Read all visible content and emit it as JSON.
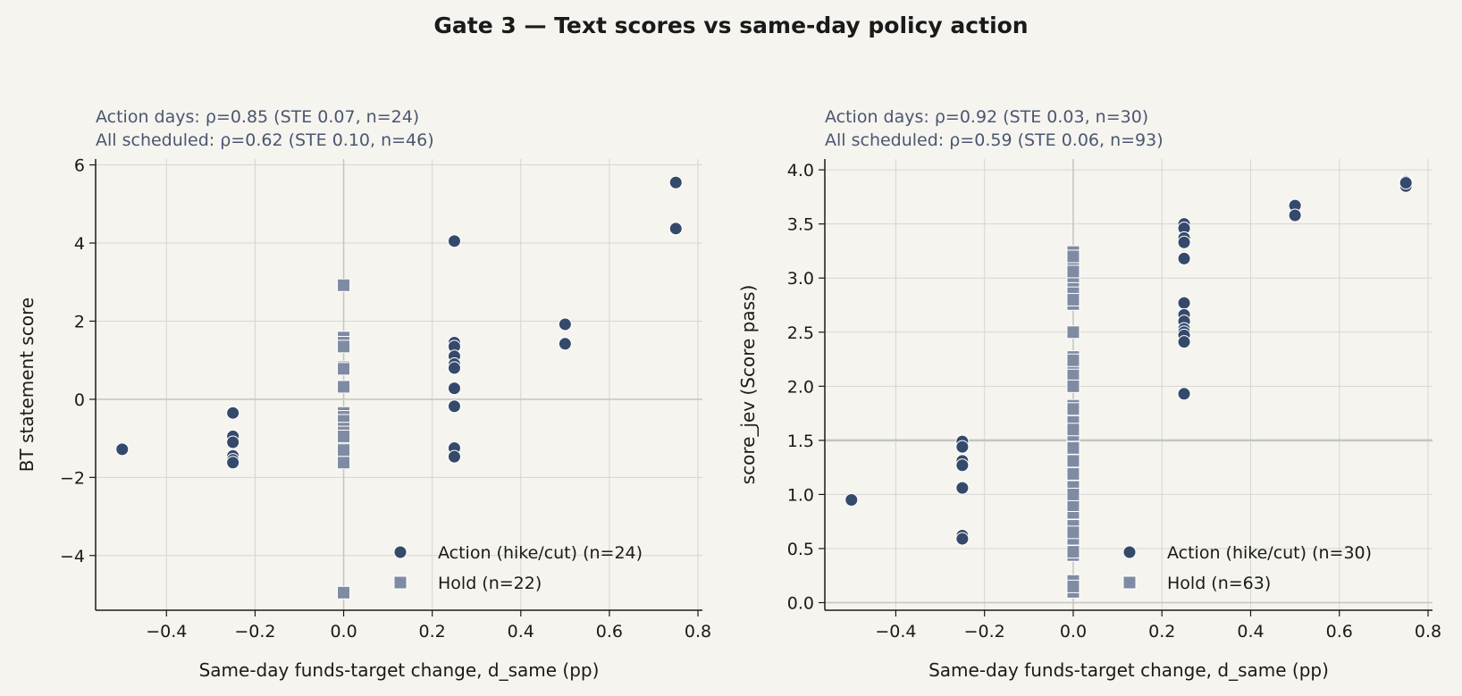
{
  "title": "Gate 3 — Text scores vs same-day policy action",
  "colors": {
    "background": "#f5f4ef",
    "action": "#35496b",
    "hold": "#7f8ba2",
    "grid": "#d6d6d2",
    "subtitle": "#4b5670"
  },
  "chart_data": [
    {
      "type": "scatter",
      "subtitle_lines": [
        "Action days: ρ=0.85 (STE 0.07, n=24)",
        "All scheduled: ρ=0.62 (STE 0.10, n=46)"
      ],
      "xlabel": "Same-day funds-target change, d_same (pp)",
      "ylabel": "BT statement score",
      "xlim": [
        -0.56,
        0.81
      ],
      "ylim": [
        -5.4,
        6.15
      ],
      "xticks": [
        -0.4,
        -0.2,
        0.0,
        0.2,
        0.4,
        0.6,
        0.8
      ],
      "xtick_labels": [
        "−0.4",
        "−0.2",
        "0.0",
        "0.2",
        "0.4",
        "0.6",
        "0.8"
      ],
      "yticks": [
        -4,
        -2,
        0,
        2,
        4,
        6
      ],
      "ytick_labels": [
        "−4",
        "−2",
        "0",
        "2",
        "4",
        "6"
      ],
      "grid": true,
      "legend_position": "lower-right",
      "series": [
        {
          "name": "Action (hike/cut) (n=24)",
          "marker": "circle",
          "points": [
            [
              -0.5,
              -1.28
            ],
            [
              -0.25,
              -0.35
            ],
            [
              -0.25,
              -0.95
            ],
            [
              -0.25,
              -1.1
            ],
            [
              -0.25,
              -1.45
            ],
            [
              -0.25,
              -1.55
            ],
            [
              -0.25,
              -1.62
            ],
            [
              0.25,
              4.05
            ],
            [
              0.25,
              1.45
            ],
            [
              0.25,
              1.35
            ],
            [
              0.25,
              1.1
            ],
            [
              0.25,
              0.9
            ],
            [
              0.25,
              0.8
            ],
            [
              0.25,
              0.28
            ],
            [
              0.25,
              -0.18
            ],
            [
              0.25,
              -1.25
            ],
            [
              0.25,
              -1.47
            ],
            [
              0.5,
              1.92
            ],
            [
              0.5,
              1.42
            ],
            [
              0.75,
              5.55
            ],
            [
              0.75,
              4.38
            ],
            [
              0.75,
              4.35
            ],
            [
              0.75,
              4.36
            ],
            [
              0.75,
              4.37
            ]
          ]
        },
        {
          "name": "Hold (n=22)",
          "marker": "square",
          "points": [
            [
              0,
              2.92
            ],
            [
              0,
              1.58
            ],
            [
              0,
              1.45
            ],
            [
              0,
              1.35
            ],
            [
              0,
              0.82
            ],
            [
              0,
              0.78
            ],
            [
              0,
              0.32
            ],
            [
              0,
              -0.35
            ],
            [
              0,
              -0.45
            ],
            [
              0,
              -0.55
            ],
            [
              0,
              -0.75
            ],
            [
              0,
              -0.85
            ],
            [
              0,
              -1.0
            ],
            [
              0,
              -1.08
            ],
            [
              0,
              -1.2
            ],
            [
              0,
              -1.35
            ],
            [
              0,
              -1.45
            ],
            [
              0,
              -1.55
            ],
            [
              0,
              -1.62
            ],
            [
              0,
              -1.3
            ],
            [
              0,
              -0.95
            ],
            [
              0,
              -4.95
            ]
          ]
        }
      ]
    },
    {
      "type": "scatter",
      "subtitle_lines": [
        "Action days: ρ=0.92 (STE 0.03, n=30)",
        "All scheduled: ρ=0.59 (STE 0.06, n=93)"
      ],
      "xlabel": "Same-day funds-target change, d_same (pp)",
      "ylabel": "score_jev (Score pass)",
      "xlim": [
        -0.56,
        0.81
      ],
      "ylim": [
        -0.07,
        4.1
      ],
      "xticks": [
        -0.4,
        -0.2,
        0.0,
        0.2,
        0.4,
        0.6,
        0.8
      ],
      "xtick_labels": [
        "−0.4",
        "−0.2",
        "0.0",
        "0.2",
        "0.4",
        "0.6",
        "0.8"
      ],
      "yticks": [
        0.0,
        0.5,
        1.0,
        1.5,
        2.0,
        2.5,
        3.0,
        3.5,
        4.0
      ],
      "ytick_labels": [
        "0.0",
        "0.5",
        "1.0",
        "1.5",
        "2.0",
        "2.5",
        "3.0",
        "3.5",
        "4.0"
      ],
      "reference_line_y": 1.5,
      "grid": true,
      "legend_position": "lower-right",
      "series": [
        {
          "name": "Action (hike/cut) (n=30)",
          "marker": "circle",
          "points": [
            [
              -0.5,
              0.95
            ],
            [
              -0.25,
              1.49
            ],
            [
              -0.25,
              1.44
            ],
            [
              -0.25,
              1.31
            ],
            [
              -0.25,
              1.27
            ],
            [
              -0.25,
              1.06
            ],
            [
              -0.25,
              0.62
            ],
            [
              -0.25,
              0.59
            ],
            [
              0.25,
              3.5
            ],
            [
              0.25,
              3.46
            ],
            [
              0.25,
              3.37
            ],
            [
              0.25,
              3.33
            ],
            [
              0.25,
              3.18
            ],
            [
              0.25,
              2.77
            ],
            [
              0.25,
              2.66
            ],
            [
              0.25,
              2.6
            ],
            [
              0.25,
              2.53
            ],
            [
              0.25,
              2.5
            ],
            [
              0.25,
              2.47
            ],
            [
              0.25,
              2.41
            ],
            [
              0.25,
              1.93
            ],
            [
              0.5,
              3.67
            ],
            [
              0.5,
              3.58
            ],
            [
              0.75,
              3.9
            ],
            [
              0.75,
              3.88
            ],
            [
              0.75,
              3.86
            ],
            [
              0.75,
              3.87
            ],
            [
              0.75,
              3.89
            ],
            [
              0.75,
              3.85
            ],
            [
              0.75,
              3.88
            ]
          ]
        },
        {
          "name": "Hold (n=63)",
          "marker": "square",
          "points": [
            [
              0,
              3.24
            ],
            [
              0,
              3.18
            ],
            [
              0,
              3.1
            ],
            [
              0,
              3.02
            ],
            [
              0,
              2.96
            ],
            [
              0,
              2.9
            ],
            [
              0,
              2.82
            ],
            [
              0,
              2.76
            ],
            [
              0,
              2.5
            ],
            [
              0,
              2.27
            ],
            [
              0,
              2.2
            ],
            [
              0,
              2.15
            ],
            [
              0,
              2.06
            ],
            [
              0,
              1.82
            ],
            [
              0,
              1.76
            ],
            [
              0,
              1.7
            ],
            [
              0,
              1.64
            ],
            [
              0,
              1.58
            ],
            [
              0,
              1.52
            ],
            [
              0,
              1.46
            ],
            [
              0,
              1.4
            ],
            [
              0,
              1.34
            ],
            [
              0,
              1.28
            ],
            [
              0,
              1.22
            ],
            [
              0,
              1.16
            ],
            [
              0,
              1.1
            ],
            [
              0,
              1.04
            ],
            [
              0,
              0.98
            ],
            [
              0,
              0.92
            ],
            [
              0,
              0.86
            ],
            [
              0,
              0.8
            ],
            [
              0,
              0.74
            ],
            [
              0,
              0.68
            ],
            [
              0,
              0.62
            ],
            [
              0,
              0.56
            ],
            [
              0,
              0.5
            ],
            [
              0,
              0.44
            ],
            [
              0,
              0.2
            ],
            [
              0,
              0.1
            ],
            [
              0,
              3.2
            ],
            [
              0,
              3.06
            ],
            [
              0,
              2.86
            ],
            [
              0,
              2.8
            ],
            [
              0,
              2.24
            ],
            [
              0,
              2.1
            ],
            [
              0,
              1.79
            ],
            [
              0,
              1.67
            ],
            [
              0,
              1.55
            ],
            [
              0,
              1.43
            ],
            [
              0,
              1.31
            ],
            [
              0,
              1.19
            ],
            [
              0,
              1.07
            ],
            [
              0,
              0.95
            ],
            [
              0,
              0.83
            ],
            [
              0,
              0.71
            ],
            [
              0,
              0.59
            ],
            [
              0,
              0.47
            ],
            [
              0,
              0.9
            ],
            [
              0,
              1.0
            ],
            [
              0,
              1.6
            ],
            [
              0,
              2.0
            ],
            [
              0,
              0.15
            ],
            [
              0,
              0.65
            ]
          ]
        }
      ]
    }
  ]
}
